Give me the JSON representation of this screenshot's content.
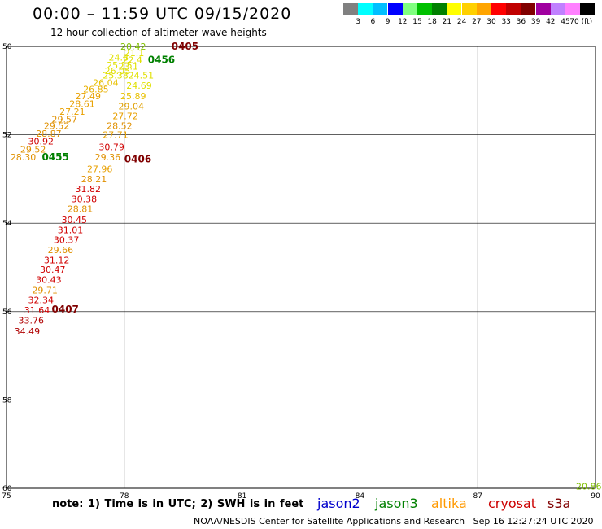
{
  "header": {
    "title": "00:00 – 11:59 UTC 09/15/2020",
    "subtitle": "12 hour collection of altimeter wave heights"
  },
  "scale": {
    "labels": [
      "3",
      "6",
      "9",
      "12",
      "15",
      "18",
      "21",
      "24",
      "27",
      "30",
      "33",
      "36",
      "39",
      "42",
      "45",
      "70 (ft)"
    ],
    "colors": [
      "#808080",
      "#00ffff",
      "#00bfff",
      "#0000ff",
      "#80ff80",
      "#00c000",
      "#008000",
      "#ffff00",
      "#ffd000",
      "#ffa500",
      "#ff0000",
      "#c00000",
      "#800000",
      "#a000a0",
      "#c080ff",
      "#ff80ff",
      "#000000"
    ]
  },
  "axes": {
    "x_ticks": [
      "75",
      "78",
      "81",
      "84",
      "87",
      "90"
    ],
    "y_ticks": [
      "50",
      "52",
      "54",
      "56",
      "58",
      "60"
    ]
  },
  "observations": [
    {
      "v": "20.42",
      "x": 77.9,
      "y": 50.0,
      "c": "#80c000"
    },
    {
      "v": "21.1",
      "x": 78.0,
      "y": 50.15,
      "c": "#e0e000"
    },
    {
      "v": "22.4",
      "x": 77.95,
      "y": 50.3,
      "c": "#e0e000"
    },
    {
      "v": "23.1",
      "x": 77.85,
      "y": 50.45,
      "c": "#e0e000"
    },
    {
      "v": "24.8",
      "x": 77.6,
      "y": 50.25,
      "c": "#e0e000"
    },
    {
      "v": "25.15",
      "x": 77.55,
      "y": 50.42,
      "c": "#e0e000"
    },
    {
      "v": "26.05",
      "x": 77.5,
      "y": 50.55,
      "c": "#e0e000"
    },
    {
      "v": "25.38",
      "x": 77.45,
      "y": 50.65,
      "c": "#e0e000"
    },
    {
      "v": "24.51",
      "x": 78.1,
      "y": 50.65,
      "c": "#e0e000"
    },
    {
      "v": "26.04",
      "x": 77.2,
      "y": 50.82,
      "c": "#e8c000"
    },
    {
      "v": "24.69",
      "x": 78.05,
      "y": 50.88,
      "c": "#e0e000"
    },
    {
      "v": "26.85",
      "x": 76.95,
      "y": 50.97,
      "c": "#e8b000"
    },
    {
      "v": "25.89",
      "x": 77.9,
      "y": 51.12,
      "c": "#e8c000"
    },
    {
      "v": "27.49",
      "x": 76.75,
      "y": 51.12,
      "c": "#e8a000"
    },
    {
      "v": "28.61",
      "x": 76.6,
      "y": 51.3,
      "c": "#e8a000"
    },
    {
      "v": "29.04",
      "x": 77.85,
      "y": 51.35,
      "c": "#e0a000"
    },
    {
      "v": "27.21",
      "x": 76.35,
      "y": 51.47,
      "c": "#e8a000"
    },
    {
      "v": "27.72",
      "x": 77.7,
      "y": 51.57,
      "c": "#e8a000"
    },
    {
      "v": "29.57",
      "x": 76.15,
      "y": 51.65,
      "c": "#e09000"
    },
    {
      "v": "29.52",
      "x": 75.95,
      "y": 51.8,
      "c": "#e09000"
    },
    {
      "v": "28.52",
      "x": 77.55,
      "y": 51.8,
      "c": "#e09000"
    },
    {
      "v": "28.87",
      "x": 75.75,
      "y": 51.97,
      "c": "#e09000"
    },
    {
      "v": "27.71",
      "x": 77.45,
      "y": 52.0,
      "c": "#e8a000"
    },
    {
      "v": "30.92",
      "x": 75.55,
      "y": 52.15,
      "c": "#d00000"
    },
    {
      "v": "30.79",
      "x": 77.35,
      "y": 52.27,
      "c": "#d00000"
    },
    {
      "v": "29.52",
      "x": 75.35,
      "y": 52.33,
      "c": "#e09000"
    },
    {
      "v": "28.30",
      "x": 75.1,
      "y": 52.5,
      "c": "#e09000"
    },
    {
      "v": "29.36",
      "x": 77.25,
      "y": 52.5,
      "c": "#e09000"
    },
    {
      "v": "27.96",
      "x": 77.05,
      "y": 52.77,
      "c": "#e8a000"
    },
    {
      "v": "28.21",
      "x": 76.9,
      "y": 53.0,
      "c": "#e09000"
    },
    {
      "v": "31.82",
      "x": 76.75,
      "y": 53.22,
      "c": "#d00000"
    },
    {
      "v": "30.38",
      "x": 76.65,
      "y": 53.45,
      "c": "#d00000"
    },
    {
      "v": "28.81",
      "x": 76.55,
      "y": 53.67,
      "c": "#e09000"
    },
    {
      "v": "30.45",
      "x": 76.4,
      "y": 53.92,
      "c": "#d00000"
    },
    {
      "v": "31.01",
      "x": 76.3,
      "y": 54.15,
      "c": "#d00000"
    },
    {
      "v": "30.37",
      "x": 76.2,
      "y": 54.37,
      "c": "#d00000"
    },
    {
      "v": "29.66",
      "x": 76.05,
      "y": 54.6,
      "c": "#e09000"
    },
    {
      "v": "31.12",
      "x": 75.95,
      "y": 54.83,
      "c": "#d00000"
    },
    {
      "v": "30.47",
      "x": 75.85,
      "y": 55.05,
      "c": "#d00000"
    },
    {
      "v": "30.43",
      "x": 75.75,
      "y": 55.28,
      "c": "#d00000"
    },
    {
      "v": "29.71",
      "x": 75.65,
      "y": 55.52,
      "c": "#e09000"
    },
    {
      "v": "32.34",
      "x": 75.55,
      "y": 55.74,
      "c": "#d00000"
    },
    {
      "v": "31.64",
      "x": 75.45,
      "y": 55.97,
      "c": "#d00000"
    },
    {
      "v": "33.76",
      "x": 75.3,
      "y": 56.2,
      "c": "#b00000"
    },
    {
      "v": "34.49",
      "x": 75.2,
      "y": 56.45,
      "c": "#b00000"
    },
    {
      "v": "20.86",
      "x": 89.75,
      "y": 59.95,
      "c": "#80c000"
    }
  ],
  "passes": [
    {
      "id": "0405",
      "x": 79.2,
      "y": 50.0,
      "c": "#800000"
    },
    {
      "id": "0456",
      "x": 78.6,
      "y": 50.3,
      "c": "#008000"
    },
    {
      "id": "0406",
      "x": 78.0,
      "y": 52.55,
      "c": "#800000"
    },
    {
      "id": "0455",
      "x": 75.9,
      "y": 52.5,
      "c": "#008000"
    },
    {
      "id": "0407",
      "x": 76.15,
      "y": 55.95,
      "c": "#800000"
    }
  ],
  "footer": {
    "note": "note:  1) Time is in UTC;  2) SWH is in feet",
    "satellites": [
      {
        "name": "jason2",
        "color": "#0000cc"
      },
      {
        "name": "jason3",
        "color": "#008000"
      },
      {
        "name": "altika",
        "color": "#ff9900"
      },
      {
        "name": "cryosat",
        "color": "#cc0000"
      },
      {
        "name": "s3a",
        "color": "#800000"
      }
    ],
    "credit": "NOAA/NESDIS Center for Satellite Applications and Research   Sep 16 12:27:24 UTC 2020"
  }
}
